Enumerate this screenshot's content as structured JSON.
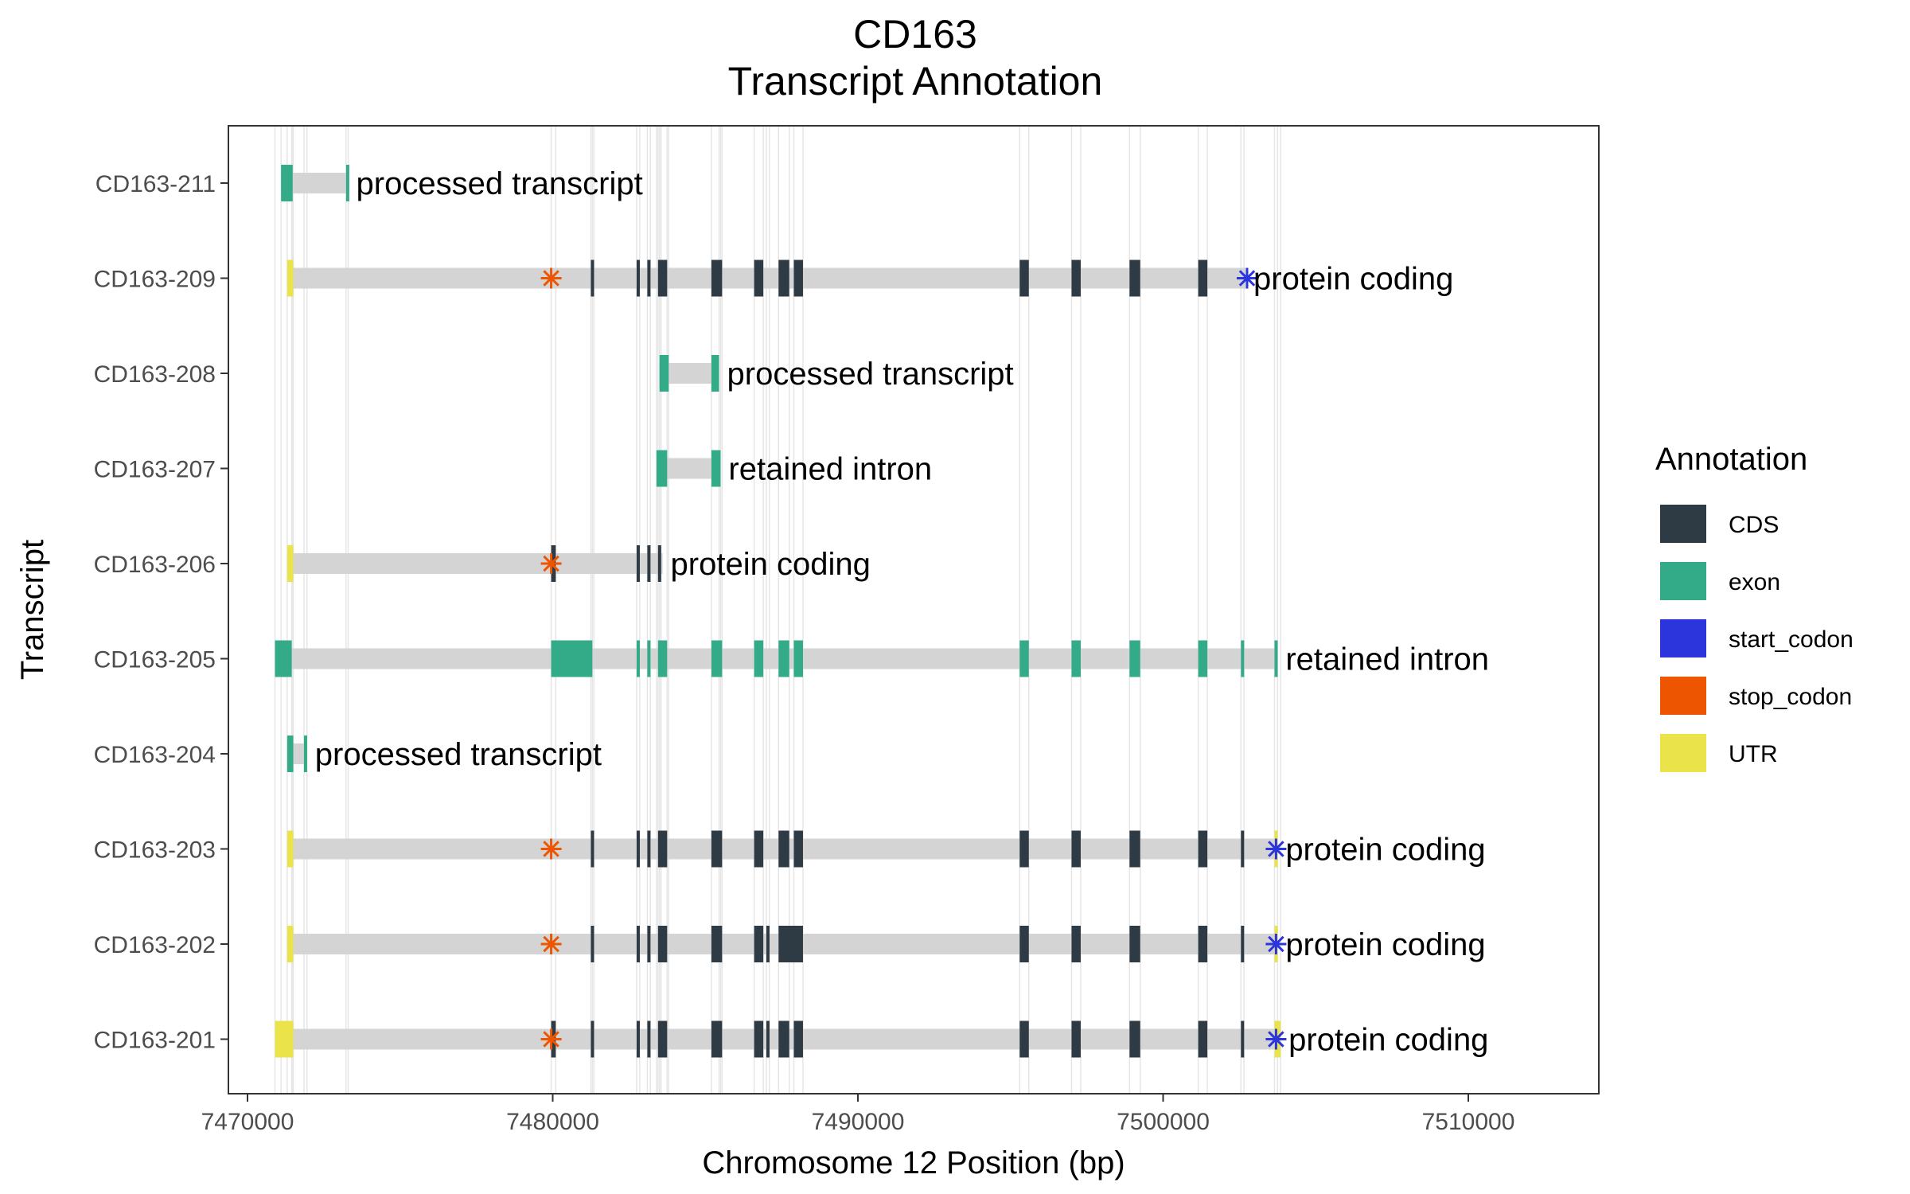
{
  "chart_data": {
    "type": "gene-track",
    "title": "CD163",
    "subtitle": "Transcript Annotation",
    "xlabel": "Chromosome 12 Position (bp)",
    "ylabel": "Transcript",
    "xlim": [
      7469500,
      7511500
    ],
    "x_ticks": [
      7470000,
      7480000,
      7490000,
      7500000,
      7510000
    ],
    "x_tick_labels": [
      "7470000",
      "7480000",
      "7490000",
      "7500000",
      "7510000"
    ],
    "grid": true,
    "legend_position": "right",
    "legend": {
      "title": "Annotation",
      "items": [
        {
          "label": "CDS",
          "color": "#2f3b44"
        },
        {
          "label": "exon",
          "color": "#33aa88"
        },
        {
          "label": "start_codon",
          "color": "#2c35dc"
        },
        {
          "label": "stop_codon",
          "color": "#ee5500"
        },
        {
          "label": "UTR",
          "color": "#ebe34a"
        }
      ]
    },
    "transcripts": [
      {
        "name": "CD163-211",
        "start": 7471100,
        "end": 7473300,
        "biotype": "processed transcript",
        "exons": [
          [
            7471100,
            7471480
          ],
          [
            7473230,
            7473300
          ]
        ],
        "cds": [],
        "utr": [],
        "start_codons": [],
        "stop_codons": []
      },
      {
        "name": "CD163-209",
        "start": 7471300,
        "end": 7502700,
        "biotype": "protein coding",
        "exons": [],
        "utr": [
          [
            7471300,
            7471500
          ]
        ],
        "cds": [
          [
            7481250,
            7481350
          ],
          [
            7482750,
            7482850
          ],
          [
            7483100,
            7483200
          ],
          [
            7483450,
            7483750
          ],
          [
            7485200,
            7485550
          ],
          [
            7486600,
            7486900
          ],
          [
            7487400,
            7487750
          ],
          [
            7487900,
            7488200
          ],
          [
            7495300,
            7495600
          ],
          [
            7497000,
            7497300
          ],
          [
            7498900,
            7499250
          ],
          [
            7501150,
            7501450
          ]
        ],
        "start_codons": [
          7502750
        ],
        "stop_codons": [
          7479950
        ]
      },
      {
        "name": "CD163-208",
        "start": 7483500,
        "end": 7485450,
        "biotype": "processed transcript",
        "exons": [
          [
            7483500,
            7483800
          ],
          [
            7485200,
            7485450
          ]
        ],
        "cds": [],
        "utr": [],
        "start_codons": [],
        "stop_codons": []
      },
      {
        "name": "CD163-207",
        "start": 7483400,
        "end": 7485500,
        "biotype": "retained intron",
        "exons": [
          [
            7483400,
            7483750
          ],
          [
            7485200,
            7485500
          ]
        ],
        "cds": [],
        "utr": [],
        "start_codons": [],
        "stop_codons": []
      },
      {
        "name": "CD163-206",
        "start": 7471300,
        "end": 7483600,
        "biotype": "protein coding",
        "exons": [],
        "utr": [
          [
            7471300,
            7471500
          ]
        ],
        "cds": [
          [
            7479950,
            7480100
          ],
          [
            7482750,
            7482850
          ],
          [
            7483100,
            7483200
          ],
          [
            7483450,
            7483550
          ]
        ],
        "start_codons": [],
        "stop_codons": [
          7479950
        ]
      },
      {
        "name": "CD163-205",
        "start": 7470900,
        "end": 7503750,
        "biotype": "retained intron",
        "exons": [
          [
            7470900,
            7471450
          ],
          [
            7479950,
            7481300
          ],
          [
            7482750,
            7482850
          ],
          [
            7483100,
            7483200
          ],
          [
            7483450,
            7483750
          ],
          [
            7485200,
            7485550
          ],
          [
            7486600,
            7486900
          ],
          [
            7487400,
            7487750
          ],
          [
            7487900,
            7488200
          ],
          [
            7495300,
            7495600
          ],
          [
            7497000,
            7497300
          ],
          [
            7498900,
            7499250
          ],
          [
            7501150,
            7501450
          ],
          [
            7502550,
            7502650
          ],
          [
            7503650,
            7503750
          ]
        ],
        "cds": [],
        "utr": [],
        "start_codons": [],
        "stop_codons": []
      },
      {
        "name": "CD163-204",
        "start": 7471300,
        "end": 7471950,
        "biotype": "processed transcript",
        "exons": [
          [
            7471300,
            7471500
          ],
          [
            7471850,
            7471950
          ]
        ],
        "cds": [],
        "utr": [],
        "start_codons": [],
        "stop_codons": []
      },
      {
        "name": "CD163-203",
        "start": 7471300,
        "end": 7503750,
        "biotype": "protein coding",
        "exons": [],
        "utr": [
          [
            7471300,
            7471500
          ],
          [
            7503650,
            7503750
          ]
        ],
        "cds": [
          [
            7481250,
            7481350
          ],
          [
            7482750,
            7482850
          ],
          [
            7483100,
            7483200
          ],
          [
            7483450,
            7483750
          ],
          [
            7485200,
            7485550
          ],
          [
            7486600,
            7486900
          ],
          [
            7487400,
            7487750
          ],
          [
            7487900,
            7488200
          ],
          [
            7495300,
            7495600
          ],
          [
            7497000,
            7497300
          ],
          [
            7498900,
            7499250
          ],
          [
            7501150,
            7501450
          ],
          [
            7502550,
            7502650
          ]
        ],
        "start_codons": [
          7503700
        ],
        "stop_codons": [
          7479950
        ]
      },
      {
        "name": "CD163-202",
        "start": 7471300,
        "end": 7503750,
        "biotype": "protein coding",
        "exons": [],
        "utr": [
          [
            7471300,
            7471500
          ],
          [
            7503650,
            7503750
          ]
        ],
        "cds": [
          [
            7481250,
            7481350
          ],
          [
            7482750,
            7482850
          ],
          [
            7483100,
            7483200
          ],
          [
            7483450,
            7483750
          ],
          [
            7485200,
            7485550
          ],
          [
            7486600,
            7486900
          ],
          [
            7487000,
            7487100
          ],
          [
            7487400,
            7488200
          ],
          [
            7495300,
            7495600
          ],
          [
            7497000,
            7497300
          ],
          [
            7498900,
            7499250
          ],
          [
            7501150,
            7501450
          ],
          [
            7502550,
            7502650
          ]
        ],
        "start_codons": [
          7503700
        ],
        "stop_codons": [
          7479950
        ]
      },
      {
        "name": "CD163-201",
        "start": 7470900,
        "end": 7503850,
        "biotype": "protein coding",
        "exons": [],
        "utr": [
          [
            7470900,
            7471500
          ],
          [
            7503650,
            7503850
          ]
        ],
        "cds": [
          [
            7479950,
            7480100
          ],
          [
            7481250,
            7481350
          ],
          [
            7482750,
            7482850
          ],
          [
            7483100,
            7483200
          ],
          [
            7483450,
            7483750
          ],
          [
            7485200,
            7485550
          ],
          [
            7486600,
            7486900
          ],
          [
            7487000,
            7487100
          ],
          [
            7487400,
            7487750
          ],
          [
            7487900,
            7488200
          ],
          [
            7495300,
            7495600
          ],
          [
            7497000,
            7497300
          ],
          [
            7498900,
            7499250
          ],
          [
            7501150,
            7501450
          ],
          [
            7502550,
            7502650
          ]
        ],
        "start_codons": [
          7503700
        ],
        "stop_codons": [
          7479950
        ]
      }
    ]
  }
}
